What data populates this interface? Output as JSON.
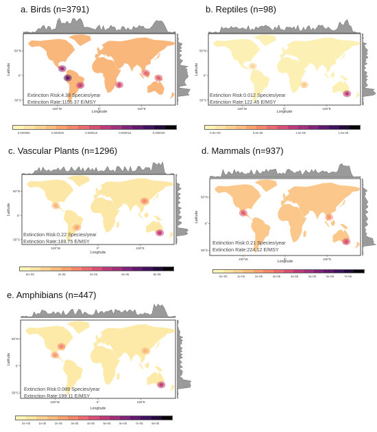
{
  "axis": {
    "xlabel": "Longitude",
    "ylabel": "Latitude",
    "lon_ticks": [
      "100°W",
      "0°",
      "100°E"
    ],
    "lat_ticks": [
      "50°N",
      "0°",
      "50°S"
    ]
  },
  "colorscale": [
    "#fef5b6",
    "#fde6a3",
    "#fcd290",
    "#fbbd7e",
    "#f9a26d",
    "#f5866a",
    "#ea6a6f",
    "#d75074",
    "#bd3a78",
    "#a1307a",
    "#7f2478",
    "#5f1a6e",
    "#3f1260",
    "#220a3a",
    "#070309"
  ],
  "panels": [
    {
      "id": "birds",
      "title": "a. Birds (n=3791)",
      "risk": "Extinction Risk:4.38 Species/year",
      "rate": "Extinction Rate:1155.37 E/MSY",
      "legend_ticks": [
        "0.000000",
        "0.000005",
        "0.000010",
        "0.000015",
        "0.000020"
      ],
      "base_color": "#f9b77c",
      "hotspots": [
        {
          "name": "central-america",
          "lon": -88,
          "lat": 14,
          "color": "#9d2e79"
        },
        {
          "name": "andes",
          "lon": -75,
          "lat": -5,
          "color": "#5b186c"
        },
        {
          "name": "atlantic-forest",
          "lon": -45,
          "lat": -20,
          "color": "#c2407a"
        },
        {
          "name": "madagascar",
          "lon": 47,
          "lat": -19,
          "color": "#cf4a73"
        },
        {
          "name": "se-asia",
          "lon": 110,
          "lat": 5,
          "color": "#e7656d"
        },
        {
          "name": "new-guinea",
          "lon": 140,
          "lat": -5,
          "color": "#e05e6f"
        }
      ]
    },
    {
      "id": "reptiles",
      "title": "b. Reptiles (n=98)",
      "risk": "Extinction Risk:0.012 Species/year",
      "rate": "Extinction Rate:122.45 E/MSY",
      "legend_ticks": [
        "0.0e+00",
        "5.0e-06",
        "1.0e-05",
        "1.5e-05"
      ],
      "base_color": "#fdf0b4",
      "hotspots": [
        {
          "name": "se-australia",
          "lon": 148,
          "lat": -37,
          "color": "#bd3a78"
        },
        {
          "name": "madagascar",
          "lon": 47,
          "lat": -19,
          "color": "#f9c88a"
        },
        {
          "name": "caribbean",
          "lon": -75,
          "lat": 19,
          "color": "#f9d494"
        }
      ]
    },
    {
      "id": "vascular-plants",
      "title": "c. Vascular Plants (n=1296)",
      "risk": "Extinction Risk:0.22 Species/year",
      "rate": "Extinction Rate:169.75 E/MSY",
      "legend_ticks": [
        "0e+00",
        "2e-05",
        "4e-05",
        "6e-05",
        "8e-05"
      ],
      "base_color": "#fde7a6",
      "hotspots": [
        {
          "name": "se-australia",
          "lon": 146,
          "lat": -36,
          "color": "#c1397a"
        },
        {
          "name": "china",
          "lon": 110,
          "lat": 30,
          "color": "#f4876b"
        },
        {
          "name": "south-brazil",
          "lon": -50,
          "lat": -25,
          "color": "#f8a56e"
        },
        {
          "name": "mexico",
          "lon": -100,
          "lat": 20,
          "color": "#f9b57a"
        }
      ]
    },
    {
      "id": "mammals",
      "title": "d. Mammals (n=937)",
      "risk": "Extinction Risk:0.21 Species/year",
      "rate": "Extinction Rate:224.12 E/MSY",
      "legend_ticks": [
        "0e+00",
        "1e-05",
        "2e-05",
        "3e-05",
        "4e-05",
        "5e-05",
        "6e-05",
        "7e-05"
      ],
      "base_color": "#fbc78a",
      "hotspots": [
        {
          "name": "mexico",
          "lon": -100,
          "lat": 20,
          "color": "#de5a70"
        },
        {
          "name": "se-australia",
          "lon": 146,
          "lat": -34,
          "color": "#d54f74"
        },
        {
          "name": "se-asia",
          "lon": 105,
          "lat": 12,
          "color": "#f7916a"
        }
      ]
    },
    {
      "id": "amphibians",
      "title": "e. Amphibians (n=447)",
      "risk": "Extinction Risk:0.089  Species/year",
      "rate": "Extinction Rate:199.11  E/MSY",
      "legend_ticks": [
        "0e+00",
        "1e-05",
        "2e-05",
        "3e-05",
        "4e-05",
        "5e-05",
        "6e-05",
        "7e-05",
        "8e-05"
      ],
      "base_color": "#fdeaa8",
      "hotspots": [
        {
          "name": "se-australia",
          "lon": 147,
          "lat": -35,
          "color": "#bd3a78"
        },
        {
          "name": "appalachia",
          "lon": -85,
          "lat": 36,
          "color": "#f2846a"
        },
        {
          "name": "mexico",
          "lon": -100,
          "lat": 20,
          "color": "#f79a6c"
        },
        {
          "name": "china",
          "lon": 110,
          "lat": 28,
          "color": "#f9b57a"
        }
      ]
    }
  ]
}
